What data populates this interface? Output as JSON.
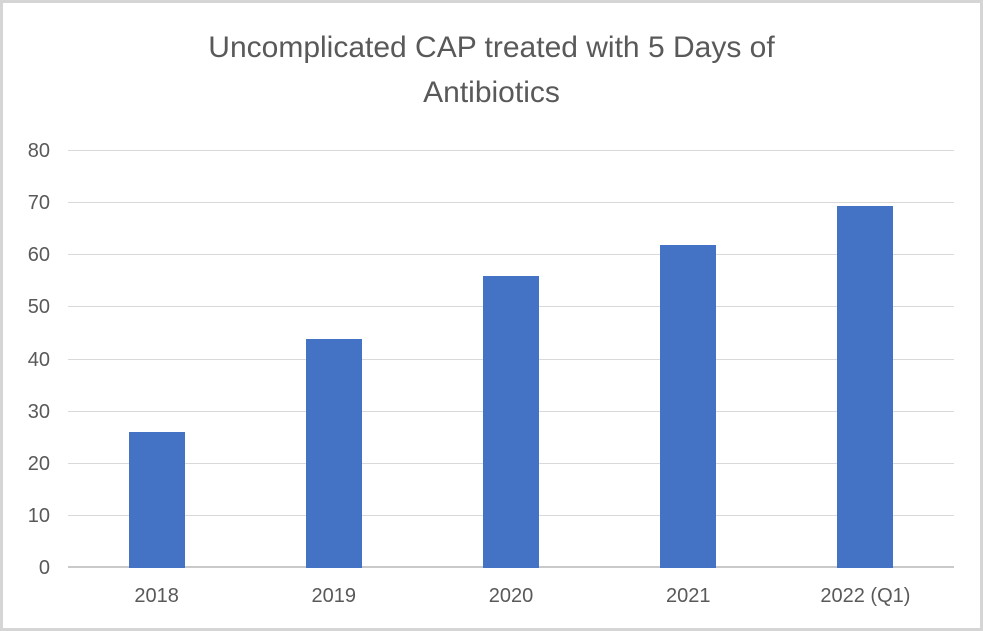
{
  "chart_data": {
    "type": "bar",
    "title": "Uncomplicated CAP treated with 5 Days of Antibiotics",
    "categories": [
      "2018",
      "2019",
      "2020",
      "2021",
      "2022 (Q1)"
    ],
    "values": [
      26,
      44,
      56,
      62,
      69.5
    ],
    "xlabel": "",
    "ylabel": "",
    "ylim": [
      0,
      80
    ],
    "yticks": [
      0,
      10,
      20,
      30,
      40,
      50,
      60,
      70,
      80
    ],
    "grid": true,
    "legend": "none",
    "colors": {
      "bar": "#4472C4",
      "gridline": "#D9D9D9",
      "axis_line": "#C9C9C9",
      "text": "#595959",
      "background": "#FFFFFF",
      "frame_border": "#D5D5D5"
    }
  }
}
